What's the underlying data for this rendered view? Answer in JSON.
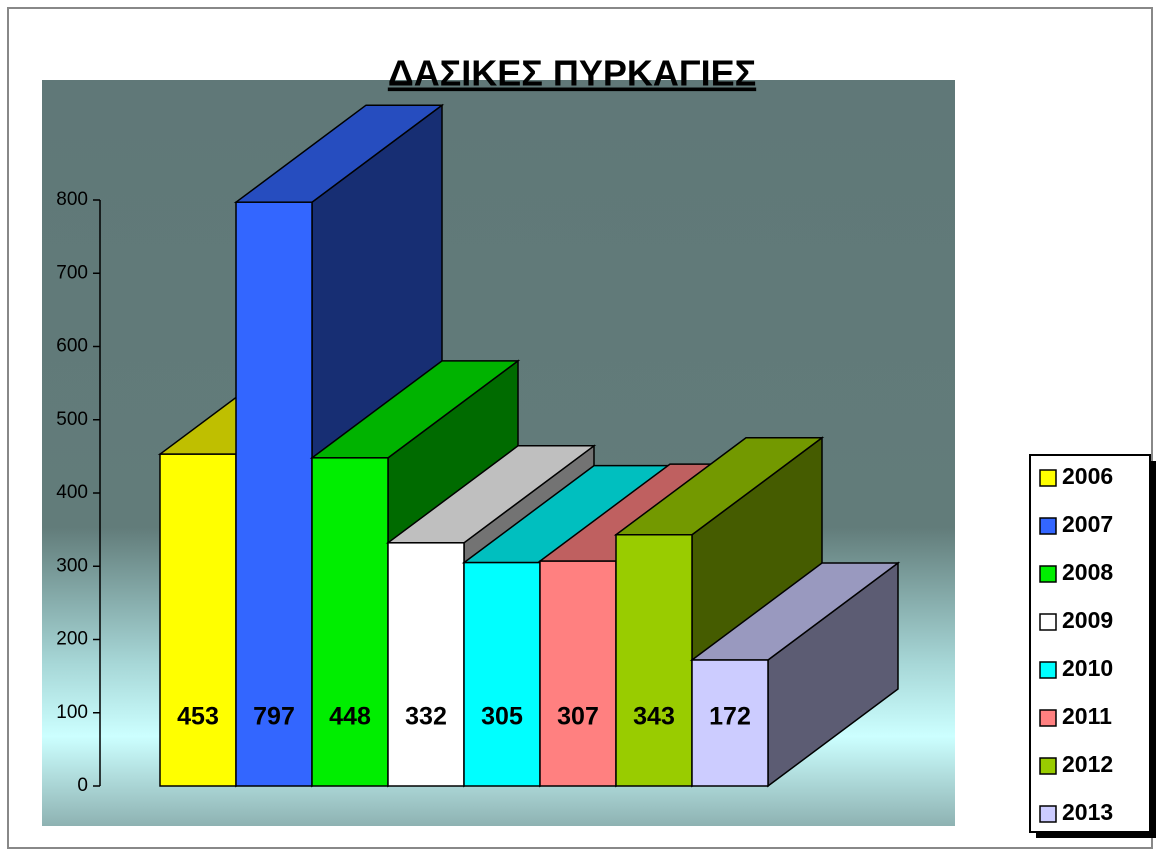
{
  "chart_data": {
    "type": "bar3d",
    "title": "ΔΑΣΙΚΕΣ ΠΥΡΚΑΓΙΕΣ",
    "series": [
      {
        "name": "2006",
        "color": "#ffff00",
        "values": [
          453
        ]
      },
      {
        "name": "2007",
        "color": "#3366ff",
        "values": [
          797
        ]
      },
      {
        "name": "2008",
        "color": "#00ee00",
        "values": [
          448
        ]
      },
      {
        "name": "2009",
        "color": "#ffffff",
        "values": [
          332
        ]
      },
      {
        "name": "2010",
        "color": "#00ffff",
        "values": [
          305
        ]
      },
      {
        "name": "2011",
        "color": "#ff8080",
        "values": [
          307
        ]
      },
      {
        "name": "2012",
        "color": "#99cc00",
        "values": [
          343
        ]
      },
      {
        "name": "2013",
        "color": "#ccccff",
        "values": [
          172
        ]
      }
    ],
    "ylim": [
      0,
      800
    ],
    "yticks": [
      0,
      100,
      200,
      300,
      400,
      500,
      600,
      700,
      800
    ],
    "legend": "right"
  }
}
